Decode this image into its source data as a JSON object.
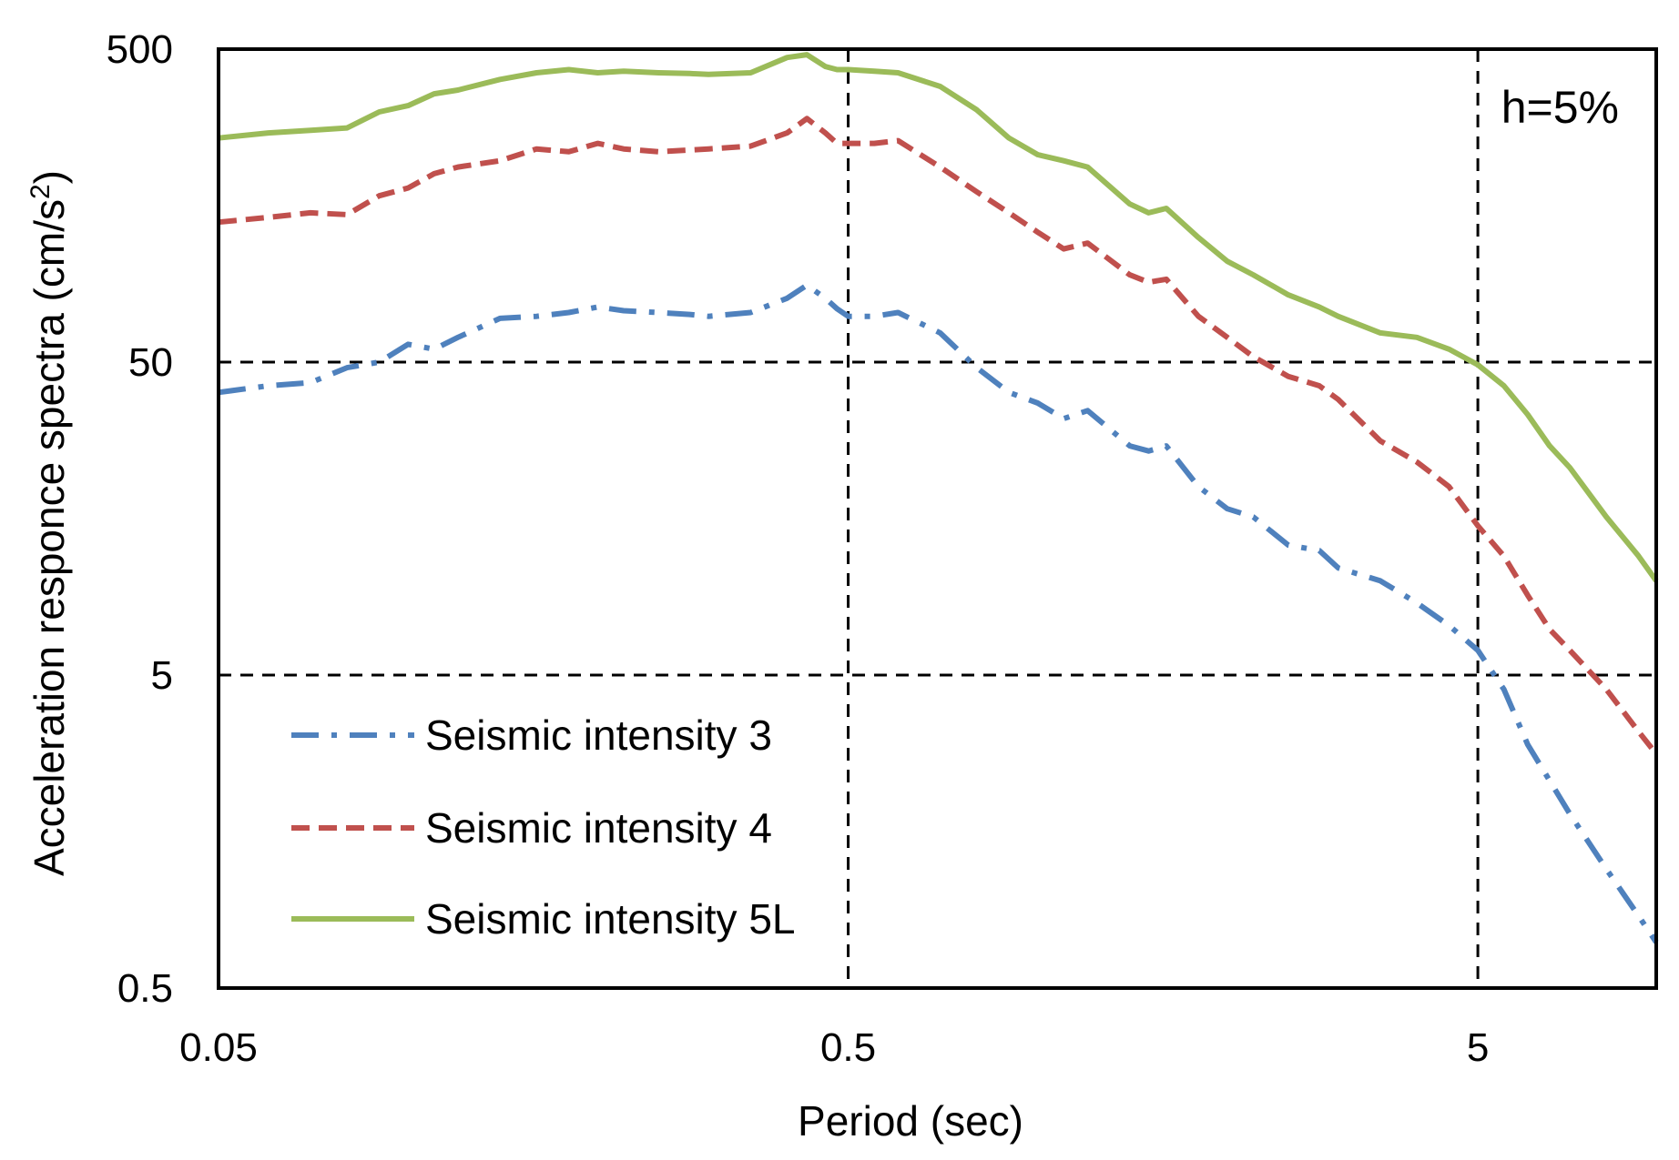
{
  "chart_data": {
    "type": "line",
    "title": "",
    "xlabel": "Period (sec)",
    "ylabel": "Acceleration responce spectra (cm/s",
    "ylabel_sup": "2",
    "ylabel_tail": ")",
    "xscale": "log",
    "yscale": "log",
    "xlim": [
      0.05,
      9.6
    ],
    "ylim": [
      0.5,
      500
    ],
    "x_ticks": [
      0.05,
      0.5,
      5
    ],
    "x_tick_labels": [
      "0.05",
      "0.5",
      "5"
    ],
    "y_ticks": [
      0.5,
      5,
      50,
      500
    ],
    "y_tick_labels": [
      "0.5",
      "5",
      "50",
      "500"
    ],
    "grid": "dashed at major ticks",
    "annotation": "h=5%",
    "legend_position": "lower-left",
    "series": [
      {
        "name": "Seismic intensity 3",
        "color": "#4f81bd",
        "style": "dash-dot",
        "x": [
          0.05,
          0.06,
          0.07,
          0.08,
          0.09,
          0.1,
          0.11,
          0.12,
          0.14,
          0.16,
          0.18,
          0.2,
          0.22,
          0.25,
          0.28,
          0.3,
          0.35,
          0.4,
          0.43,
          0.46,
          0.48,
          0.5,
          0.55,
          0.6,
          0.7,
          0.8,
          0.9,
          1.0,
          1.1,
          1.2,
          1.4,
          1.5,
          1.6,
          1.8,
          2.0,
          2.2,
          2.5,
          2.8,
          3.0,
          3.5,
          4.0,
          4.5,
          5.0,
          5.5,
          6.0,
          6.5,
          7.0,
          8.0,
          9.0,
          9.6
        ],
        "values": [
          40,
          42,
          43,
          48,
          50,
          57,
          55,
          60,
          69,
          70,
          72,
          75,
          73,
          72,
          71,
          70,
          72,
          80,
          88,
          80,
          74,
          70,
          70,
          72,
          62,
          48,
          40,
          37,
          33,
          35,
          27,
          26,
          27,
          20,
          17,
          16,
          13,
          12.5,
          11,
          10,
          8.5,
          7.2,
          6.0,
          4.5,
          3.0,
          2.3,
          1.8,
          1.2,
          0.85,
          0.7
        ]
      },
      {
        "name": "Seismic intensity 4",
        "color": "#c0504d",
        "style": "dashed",
        "x": [
          0.05,
          0.06,
          0.07,
          0.08,
          0.09,
          0.1,
          0.11,
          0.12,
          0.14,
          0.16,
          0.18,
          0.2,
          0.22,
          0.25,
          0.28,
          0.3,
          0.35,
          0.4,
          0.43,
          0.46,
          0.48,
          0.5,
          0.55,
          0.6,
          0.7,
          0.8,
          0.9,
          1.0,
          1.1,
          1.2,
          1.4,
          1.5,
          1.6,
          1.8,
          2.0,
          2.2,
          2.5,
          2.8,
          3.0,
          3.5,
          4.0,
          4.5,
          5.0,
          5.5,
          6.0,
          6.5,
          7.0,
          8.0,
          9.0,
          9.6
        ],
        "values": [
          140,
          145,
          150,
          148,
          170,
          180,
          200,
          210,
          220,
          240,
          235,
          250,
          240,
          235,
          238,
          240,
          245,
          270,
          300,
          270,
          250,
          250,
          250,
          255,
          210,
          175,
          150,
          130,
          115,
          120,
          95,
          90,
          92,
          70,
          60,
          52,
          45,
          42,
          38,
          28,
          24,
          20,
          15,
          12,
          9,
          7,
          6,
          4.5,
          3.3,
          2.8
        ]
      },
      {
        "name": "Seismic intensity 5L",
        "color": "#9bbb59",
        "style": "solid",
        "x": [
          0.05,
          0.06,
          0.07,
          0.08,
          0.09,
          0.1,
          0.11,
          0.12,
          0.14,
          0.16,
          0.18,
          0.2,
          0.22,
          0.25,
          0.28,
          0.3,
          0.35,
          0.4,
          0.43,
          0.46,
          0.48,
          0.5,
          0.55,
          0.6,
          0.7,
          0.8,
          0.9,
          1.0,
          1.1,
          1.2,
          1.4,
          1.5,
          1.6,
          1.8,
          2.0,
          2.2,
          2.5,
          2.8,
          3.0,
          3.5,
          4.0,
          4.5,
          5.0,
          5.5,
          6.0,
          6.5,
          7.0,
          8.0,
          9.0,
          9.6
        ],
        "values": [
          260,
          270,
          275,
          280,
          315,
          330,
          360,
          370,
          400,
          420,
          430,
          420,
          425,
          420,
          418,
          415,
          420,
          470,
          480,
          440,
          430,
          430,
          425,
          420,
          380,
          320,
          260,
          230,
          220,
          210,
          160,
          150,
          155,
          125,
          105,
          95,
          82,
          75,
          70,
          62,
          60,
          55,
          49,
          42,
          34,
          27,
          23,
          16,
          12,
          10
        ]
      }
    ]
  }
}
